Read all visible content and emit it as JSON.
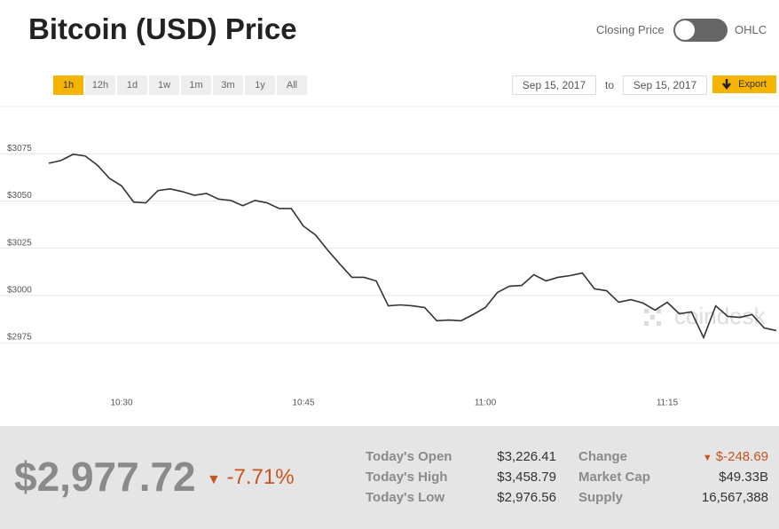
{
  "header": {
    "title": "Bitcoin (USD) Price",
    "toggle": {
      "left": "Closing Price",
      "right": "OHLC"
    }
  },
  "toolbar": {
    "ranges": [
      "1h",
      "12h",
      "1d",
      "1w",
      "1m",
      "3m",
      "1y",
      "All"
    ],
    "active": "1h",
    "from": "Sep 15, 2017",
    "to_label": "to",
    "to": "Sep 15, 2017",
    "export": "Export"
  },
  "chart_data": {
    "type": "line",
    "x": [
      "10:24",
      "10:25",
      "10:26",
      "10:27",
      "10:28",
      "10:29",
      "10:30",
      "10:31",
      "10:32",
      "10:33",
      "10:34",
      "10:35",
      "10:36",
      "10:37",
      "10:38",
      "10:39",
      "10:40",
      "10:41",
      "10:42",
      "10:43",
      "10:44",
      "10:45",
      "10:46",
      "10:47",
      "10:48",
      "10:49",
      "10:50",
      "10:51",
      "10:52",
      "10:53",
      "10:54",
      "10:55",
      "10:56",
      "10:57",
      "10:58",
      "10:59",
      "11:00",
      "11:01",
      "11:02",
      "11:03",
      "11:04",
      "11:05",
      "11:06",
      "11:07",
      "11:08",
      "11:09",
      "11:10",
      "11:11",
      "11:12",
      "11:13",
      "11:14",
      "11:15",
      "11:16",
      "11:17",
      "11:18",
      "11:19",
      "11:20",
      "11:21",
      "11:22",
      "11:23",
      "11:24"
    ],
    "series": [
      {
        "color": "#333333",
        "values": [
          3070,
          3071.4,
          3074.7,
          3073.8,
          3069,
          3062,
          3058,
          3049.4,
          3049,
          3055.5,
          3056.4,
          3055,
          3053,
          3054,
          3051,
          3050.3,
          3047.5,
          3050.3,
          3049,
          3046,
          3046,
          3036.7,
          3032,
          3024,
          3016.6,
          3009.6,
          3009.6,
          3007.7,
          2994.5,
          2995,
          2994.5,
          2993.6,
          2986.6,
          2987,
          2986.6,
          2989.9,
          2993.6,
          3001.6,
          3004.9,
          3005.3,
          3011,
          3007.7,
          3009.6,
          3010.5,
          3011.9,
          3003.5,
          3002.5,
          2996.4,
          2997.8,
          2996,
          2992.2,
          2996.4,
          2990.3,
          2991.3,
          2977.7,
          2994.5,
          2988.9,
          2988.4,
          2989.9,
          2982.8,
          2981.4
        ]
      }
    ],
    "xlim": [
      "10:24",
      "11:24"
    ],
    "xticks": [
      "10:30",
      "10:45",
      "11:00",
      "11:15"
    ],
    "ylim": [
      2950,
      3100
    ],
    "yticks": [
      {
        "value": 2975,
        "label": "$2975"
      },
      {
        "value": 3000,
        "label": "$3000"
      },
      {
        "value": 3025,
        "label": "$3025"
      },
      {
        "value": 3050,
        "label": "$3050"
      },
      {
        "value": 3075,
        "label": "$3075"
      }
    ],
    "grid": true,
    "watermark": "coindesk"
  },
  "summary": {
    "price": "$2,977.72",
    "change": "-7.71%",
    "left": [
      {
        "label": "Today's Open",
        "value": "$3,226.41"
      },
      {
        "label": "Today's High",
        "value": "$3,458.79"
      },
      {
        "label": "Today's Low",
        "value": "$2,976.56"
      }
    ],
    "right": [
      {
        "label": "Change",
        "value": "$-248.69"
      },
      {
        "label": "Market Cap",
        "value": "$49.33B"
      },
      {
        "label": "Supply",
        "value": "16,567,388"
      }
    ]
  }
}
